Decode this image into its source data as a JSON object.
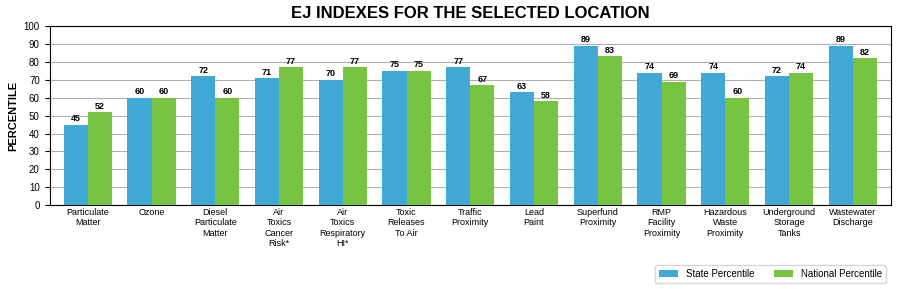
{
  "chart_data": {
    "type": "bar",
    "title": "EJ INDEXES FOR THE SELECTED LOCATION",
    "categories": [
      "Particulate\nMatter",
      "Ozone",
      "Diesel\nParticulate\nMatter",
      "Air\nToxics\nCancer\nRisk*",
      "Air\nToxics\nRespiratory\nHI*",
      "Toxic\nReleases\nTo Air",
      "Traffic\nProximity",
      "Lead\nPaint",
      "Superfund\nProximity",
      "RMP\nFacility\nProximity",
      "Hazardous\nWaste\nProximity",
      "Underground\nStorage\nTanks",
      "Wastewater\nDischarge"
    ],
    "series": [
      {
        "name": "State Percentile",
        "color": "#3fa8d5",
        "values": [
          45,
          60,
          72,
          71,
          70,
          75,
          77,
          63,
          89,
          74,
          74,
          72,
          89
        ]
      },
      {
        "name": "National Percentile",
        "color": "#76c442",
        "values": [
          52,
          60,
          60,
          77,
          77,
          75,
          67,
          58,
          83,
          69,
          60,
          74,
          82
        ]
      }
    ],
    "y_label": "PERCENTILE",
    "ylim": [
      0,
      100
    ],
    "yticks": [
      0,
      10,
      20,
      30,
      40,
      50,
      60,
      70,
      80,
      90,
      100
    ],
    "grid": true,
    "legend": "lower right",
    "data_labels": true
  }
}
